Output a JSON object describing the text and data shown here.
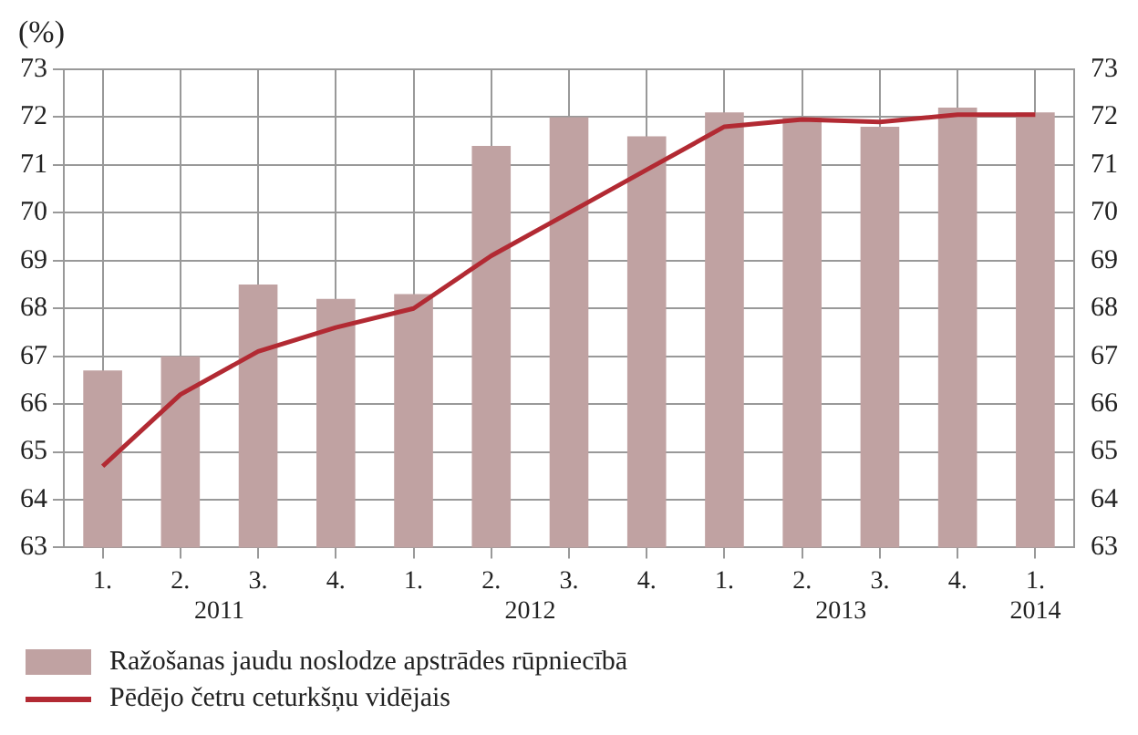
{
  "chart_data": {
    "type": "bar",
    "ylabel": "(%)",
    "categories": [
      "1.",
      "2.",
      "3.",
      "4.",
      "1.",
      "2.",
      "3.",
      "4.",
      "1.",
      "2.",
      "3.",
      "4.",
      "1."
    ],
    "series": [
      {
        "name": "Ražošanas jaudu noslodze apstrādes rūpniecībā",
        "color": "#c0a2a2",
        "values": [
          66.7,
          67.0,
          68.5,
          68.2,
          68.3,
          71.4,
          72.0,
          71.6,
          72.1,
          72.0,
          71.8,
          72.2,
          72.1
        ]
      },
      {
        "name": "Pēdējo četru ceturkšņu vidējais",
        "type": "line",
        "color": "#b22a33",
        "values": [
          64.7,
          66.2,
          67.1,
          67.6,
          68.0,
          69.1,
          70.0,
          70.9,
          71.8,
          71.95,
          71.9,
          72.05,
          72.05
        ]
      }
    ],
    "annotations": [
      "2011",
      "2012",
      "2013",
      "2014"
    ],
    "ylim": [
      63,
      73
    ],
    "yticks": [
      63,
      64,
      65,
      66,
      67,
      68,
      69,
      70,
      71,
      72,
      73
    ],
    "y2lim": [
      63,
      73
    ],
    "y2ticks": [
      63,
      64,
      65,
      66,
      67,
      68,
      69,
      70,
      71,
      72,
      73
    ],
    "grid": true,
    "legend": "bottom",
    "marker": "none",
    "line_style": "solid"
  }
}
